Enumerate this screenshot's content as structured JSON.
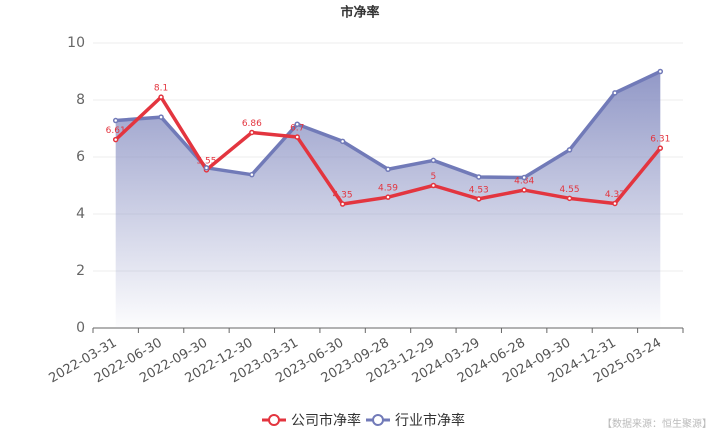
{
  "chart_data": {
    "type": "line",
    "title": "市净率",
    "categories": [
      "2022-03-31",
      "2022-06-30",
      "2022-09-30",
      "2022-12-30",
      "2023-03-31",
      "2023-06-30",
      "2023-09-28",
      "2023-12-29",
      "2024-03-29",
      "2024-06-28",
      "2024-09-30",
      "2024-12-31",
      "2025-03-24"
    ],
    "series": [
      {
        "name": "公司市净率",
        "color": "#e3353f",
        "values": [
          6.61,
          8.1,
          5.55,
          6.86,
          6.7,
          4.35,
          4.59,
          5,
          4.53,
          4.84,
          4.55,
          4.37,
          6.31
        ]
      },
      {
        "name": "行业市净率",
        "color": "#717ab8",
        "values": [
          7.28,
          7.4,
          5.62,
          5.38,
          7.15,
          6.55,
          5.57,
          5.88,
          5.3,
          5.28,
          6.25,
          8.25,
          9.0
        ]
      }
    ],
    "ylim": [
      0,
      10
    ],
    "yticks": [
      0,
      2,
      4,
      6,
      8,
      10
    ],
    "grid": true,
    "source": "【数据来源：恒生聚源】"
  }
}
